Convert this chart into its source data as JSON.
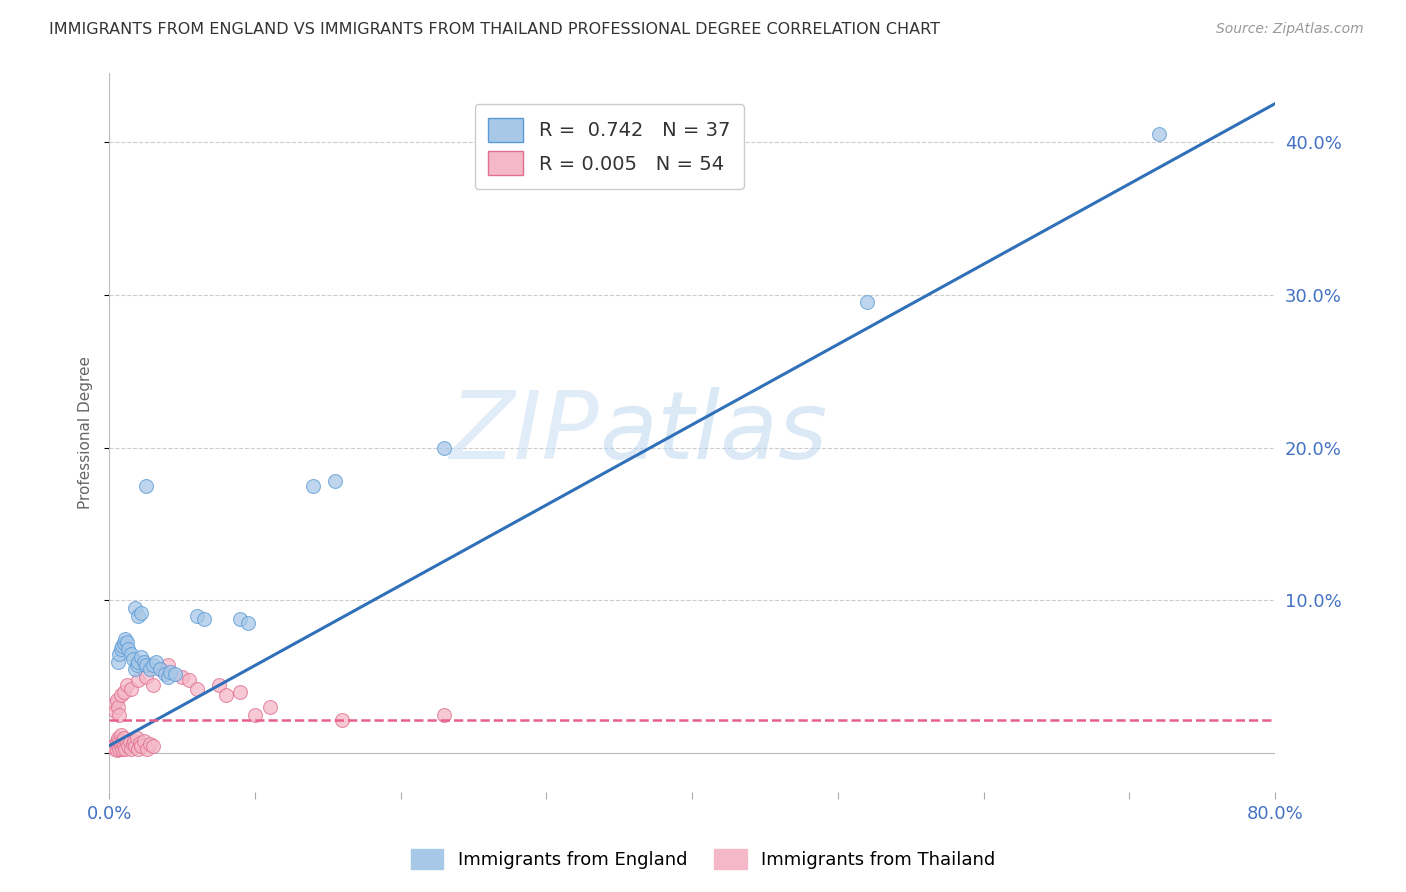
{
  "title": "IMMIGRANTS FROM ENGLAND VS IMMIGRANTS FROM THAILAND PROFESSIONAL DEGREE CORRELATION CHART",
  "source": "Source: ZipAtlas.com",
  "ylabel": "Professional Degree",
  "xlim": [
    0.0,
    0.8
  ],
  "ylim": [
    -0.025,
    0.445
  ],
  "watermark_zip": "ZIP",
  "watermark_atlas": "atlas",
  "england_color": "#a8c8e8",
  "england_edge_color": "#5b9bd5",
  "thailand_color": "#f4b8c8",
  "thailand_edge_color": "#e07090",
  "england_line_color": "#3070b8",
  "thailand_line_color": "#e8608a",
  "R_england": 0.742,
  "N_england": 37,
  "R_thailand": 0.005,
  "N_thailand": 54,
  "england_line_x0": 0.0,
  "england_line_y0": 0.005,
  "england_line_x1": 0.8,
  "england_line_y1": 0.425,
  "thailand_line_x0": 0.0,
  "thailand_line_y0": 0.022,
  "thailand_line_x1": 0.8,
  "thailand_line_y1": 0.022,
  "england_scatter_x": [
    0.006,
    0.007,
    0.008,
    0.009,
    0.01,
    0.011,
    0.012,
    0.013,
    0.015,
    0.016,
    0.018,
    0.019,
    0.02,
    0.022,
    0.024,
    0.025,
    0.028,
    0.03,
    0.032,
    0.035,
    0.038,
    0.04,
    0.042,
    0.045,
    0.018,
    0.02,
    0.022,
    0.06,
    0.065,
    0.09,
    0.095,
    0.14,
    0.155,
    0.23,
    0.52,
    0.72,
    0.025
  ],
  "england_scatter_y": [
    0.06,
    0.065,
    0.068,
    0.07,
    0.072,
    0.075,
    0.073,
    0.068,
    0.065,
    0.062,
    0.055,
    0.058,
    0.06,
    0.063,
    0.06,
    0.058,
    0.055,
    0.058,
    0.06,
    0.055,
    0.052,
    0.05,
    0.053,
    0.052,
    0.095,
    0.09,
    0.092,
    0.09,
    0.088,
    0.088,
    0.085,
    0.175,
    0.178,
    0.2,
    0.295,
    0.405,
    0.175
  ],
  "thailand_scatter_x": [
    0.003,
    0.004,
    0.005,
    0.005,
    0.006,
    0.006,
    0.007,
    0.007,
    0.008,
    0.008,
    0.009,
    0.009,
    0.01,
    0.01,
    0.011,
    0.012,
    0.013,
    0.014,
    0.015,
    0.016,
    0.017,
    0.018,
    0.019,
    0.02,
    0.021,
    0.022,
    0.024,
    0.026,
    0.028,
    0.03,
    0.003,
    0.004,
    0.005,
    0.006,
    0.007,
    0.008,
    0.01,
    0.012,
    0.015,
    0.02,
    0.025,
    0.03,
    0.035,
    0.04,
    0.05,
    0.055,
    0.06,
    0.075,
    0.08,
    0.09,
    0.1,
    0.11,
    0.16,
    0.23
  ],
  "thailand_scatter_y": [
    0.005,
    0.003,
    0.002,
    0.008,
    0.005,
    0.01,
    0.003,
    0.008,
    0.005,
    0.012,
    0.003,
    0.008,
    0.005,
    0.01,
    0.003,
    0.007,
    0.005,
    0.008,
    0.003,
    0.006,
    0.008,
    0.005,
    0.01,
    0.003,
    0.007,
    0.005,
    0.008,
    0.003,
    0.006,
    0.005,
    0.032,
    0.028,
    0.035,
    0.03,
    0.025,
    0.038,
    0.04,
    0.045,
    0.042,
    0.048,
    0.05,
    0.045,
    0.055,
    0.058,
    0.05,
    0.048,
    0.042,
    0.045,
    0.038,
    0.04,
    0.025,
    0.03,
    0.022,
    0.025
  ],
  "background_color": "#ffffff",
  "grid_color": "#cccccc",
  "tick_color": "#4472c4",
  "legend_r_color": "#4472c4",
  "legend_n_color": "#4472c4"
}
